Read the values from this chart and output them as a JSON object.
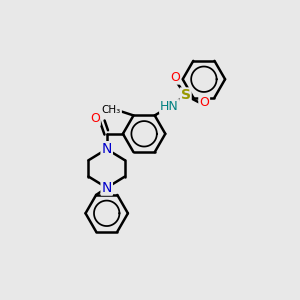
{
  "background_color": "#e8e8e8",
  "line_color": "#000000",
  "bond_width": 1.8,
  "figsize": [
    3.0,
    3.0
  ],
  "dpi": 100,
  "colors": {
    "N": "#008080",
    "S": "#999900",
    "O": "#ff0000",
    "N_pip": "#0000cc",
    "C": "#000000"
  }
}
